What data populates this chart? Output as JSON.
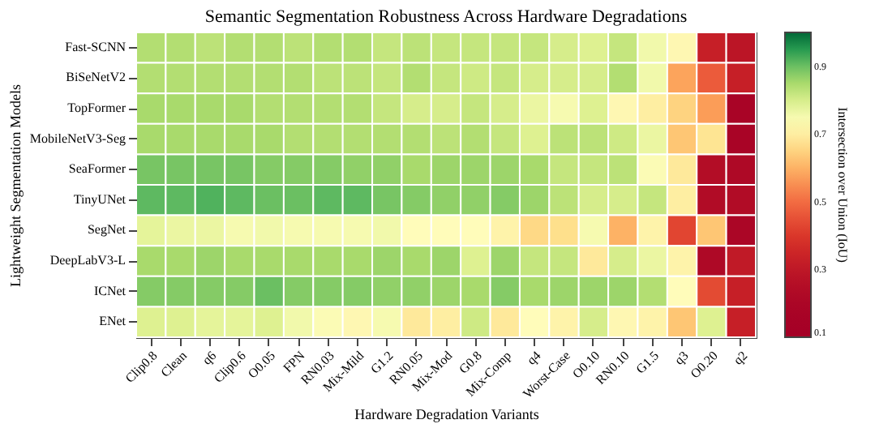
{
  "chart_data": {
    "type": "heatmap",
    "title": "Semantic Segmentation Robustness Across Hardware Degradations",
    "xlabel": "Hardware Degradation Variants",
    "ylabel": "Lightweight Segmentation Models",
    "clabel": "Intersection over Union (IoU)",
    "categories": [
      "Clip0.8",
      "Clean",
      "q6",
      "Clip0.6",
      "O0.05",
      "FPN",
      "RN0.03",
      "Mix-Mild",
      "G1.2",
      "RN0.05",
      "Mix-Mod",
      "G0.8",
      "Mix-Comp",
      "q4",
      "Worst-Case",
      "O0.10",
      "RN0.10",
      "G1.5",
      "q3",
      "O0.20",
      "q2"
    ],
    "y_categories": [
      "Fast-SCNN",
      "BiSeNetV2",
      "TopFormer",
      "MobileNetV3-Seg",
      "SeaFormer",
      "TinyUNet",
      "SegNet",
      "DeepLabV3-L",
      "ICNet",
      "ENet"
    ],
    "cells": [
      [
        0.84,
        0.84,
        0.83,
        0.84,
        0.84,
        0.83,
        0.84,
        0.84,
        0.82,
        0.83,
        0.82,
        0.82,
        0.82,
        0.82,
        0.8,
        0.79,
        0.82,
        0.76,
        0.72,
        0.33,
        0.29
      ],
      [
        0.84,
        0.84,
        0.84,
        0.84,
        0.84,
        0.84,
        0.83,
        0.83,
        0.82,
        0.84,
        0.82,
        0.81,
        0.82,
        0.8,
        0.8,
        0.8,
        0.84,
        0.76,
        0.58,
        0.47,
        0.33
      ],
      [
        0.85,
        0.85,
        0.85,
        0.85,
        0.84,
        0.84,
        0.84,
        0.84,
        0.82,
        0.8,
        0.8,
        0.82,
        0.8,
        0.77,
        0.75,
        0.79,
        0.72,
        0.7,
        0.65,
        0.57,
        0.18
      ],
      [
        0.85,
        0.85,
        0.85,
        0.85,
        0.85,
        0.84,
        0.84,
        0.84,
        0.84,
        0.84,
        0.83,
        0.84,
        0.82,
        0.79,
        0.83,
        0.83,
        0.81,
        0.77,
        0.63,
        0.68,
        0.18
      ],
      [
        0.89,
        0.89,
        0.89,
        0.89,
        0.88,
        0.88,
        0.88,
        0.87,
        0.87,
        0.85,
        0.86,
        0.86,
        0.86,
        0.85,
        0.82,
        0.82,
        0.83,
        0.74,
        0.69,
        0.25,
        0.22
      ],
      [
        0.91,
        0.91,
        0.92,
        0.91,
        0.9,
        0.9,
        0.91,
        0.91,
        0.89,
        0.88,
        0.87,
        0.87,
        0.88,
        0.86,
        0.83,
        0.8,
        0.8,
        0.82,
        0.7,
        0.24,
        0.24
      ],
      [
        0.78,
        0.77,
        0.77,
        0.75,
        0.76,
        0.75,
        0.75,
        0.75,
        0.76,
        0.73,
        0.73,
        0.73,
        0.71,
        0.66,
        0.67,
        0.75,
        0.6,
        0.71,
        0.43,
        0.63,
        0.2
      ],
      [
        0.85,
        0.85,
        0.86,
        0.85,
        0.85,
        0.85,
        0.85,
        0.85,
        0.86,
        0.85,
        0.86,
        0.79,
        0.86,
        0.82,
        0.82,
        0.69,
        0.8,
        0.77,
        0.71,
        0.22,
        0.31
      ],
      [
        0.88,
        0.88,
        0.88,
        0.88,
        0.9,
        0.88,
        0.88,
        0.88,
        0.87,
        0.87,
        0.86,
        0.85,
        0.88,
        0.85,
        0.86,
        0.86,
        0.86,
        0.84,
        0.73,
        0.44,
        0.33
      ],
      [
        0.79,
        0.79,
        0.78,
        0.78,
        0.79,
        0.76,
        0.74,
        0.72,
        0.75,
        0.69,
        0.7,
        0.81,
        0.69,
        0.73,
        0.71,
        0.8,
        0.72,
        0.71,
        0.63,
        0.79,
        0.33
      ]
    ],
    "clim": [
      0.1,
      1.0
    ],
    "cticks": [
      0.1,
      0.3,
      0.5,
      0.7,
      0.9
    ]
  }
}
